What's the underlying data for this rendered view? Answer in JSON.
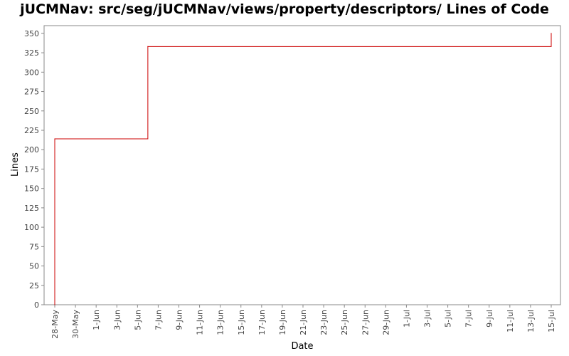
{
  "chart_data": {
    "type": "line",
    "title": "jUCMNav: src/seg/jUCMNav/views/property/descriptors/ Lines of Code",
    "xlabel": "Date",
    "ylabel": "Lines",
    "ylim": [
      0,
      360
    ],
    "y_ticks": [
      0,
      25,
      50,
      75,
      100,
      125,
      150,
      175,
      200,
      225,
      250,
      275,
      300,
      325,
      350
    ],
    "x_ticks": [
      "28-May",
      "30-May",
      "1-Jun",
      "3-Jun",
      "5-Jun",
      "7-Jun",
      "9-Jun",
      "11-Jun",
      "13-Jun",
      "15-Jun",
      "17-Jun",
      "19-Jun",
      "21-Jun",
      "23-Jun",
      "25-Jun",
      "27-Jun",
      "29-Jun",
      "1-Jul",
      "3-Jul",
      "5-Jul",
      "7-Jul",
      "9-Jul",
      "11-Jul",
      "13-Jul",
      "15-Jul"
    ],
    "step": true,
    "grid": false,
    "series": [
      {
        "name": "",
        "color": "#cc0000",
        "x": [
          "28-May",
          "28-May",
          "6-Jun",
          "15-Jul"
        ],
        "values": [
          0,
          214,
          333,
          350
        ]
      }
    ]
  }
}
